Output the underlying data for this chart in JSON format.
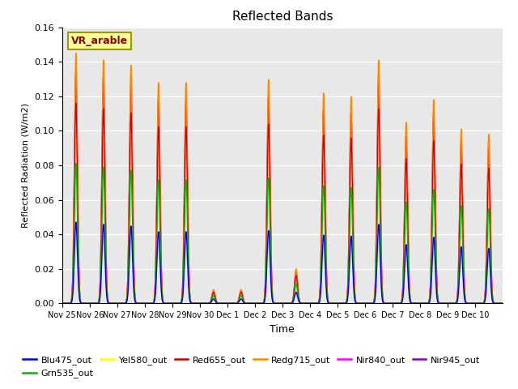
{
  "title": "Reflected Bands",
  "xlabel": "Time",
  "ylabel": "Reflected Radiation (W/m2)",
  "annotation": "VR_arable",
  "ylim": [
    0,
    0.16
  ],
  "series_order": [
    "Nir945_out",
    "Nir840_out",
    "Redg715_out",
    "Yel580_out",
    "Red655_out",
    "Grn535_out",
    "Blu475_out"
  ],
  "series": {
    "Blu475_out": {
      "color": "#0000DD",
      "lw": 1.0
    },
    "Grn535_out": {
      "color": "#00BB00",
      "lw": 1.0
    },
    "Yel580_out": {
      "color": "#FFFF00",
      "lw": 1.0
    },
    "Red655_out": {
      "color": "#CC0000",
      "lw": 1.0
    },
    "Redg715_out": {
      "color": "#FF8800",
      "lw": 1.0
    },
    "Nir840_out": {
      "color": "#FF00FF",
      "lw": 1.2
    },
    "Nir945_out": {
      "color": "#8800CC",
      "lw": 1.0
    }
  },
  "bg_color": "#E8E8E8",
  "tick_labels": [
    "Nov 25",
    "Nov 26",
    "Nov 27",
    "Nov 28",
    "Nov 29",
    "Nov 30",
    "Dec 1",
    "Dec 2",
    "Dec 3",
    "Dec 4",
    "Dec 5",
    "Dec 6",
    "Dec 7",
    "Dec 8",
    "Dec 9",
    "Dec 10"
  ],
  "n_days": 16,
  "pts_per_day": 144,
  "nir840_peaks": [
    0.145,
    0.141,
    0.138,
    0.128,
    0.128,
    0.008,
    0.008,
    0.13,
    0.02,
    0.122,
    0.12,
    0.141,
    0.105,
    0.118,
    0.101,
    0.098
  ],
  "series_rel": {
    "Blu475_out": 0.325,
    "Grn535_out": 0.56,
    "Yel580_out": 0.75,
    "Red655_out": 0.8,
    "Redg715_out": 1.0,
    "Nir840_out": 0.92,
    "Nir945_out": 0.88
  },
  "peak_sigma": 0.055,
  "legend_order": [
    "Blu475_out",
    "Grn535_out",
    "Yel580_out",
    "Red655_out",
    "Redg715_out",
    "Nir840_out",
    "Nir945_out"
  ]
}
